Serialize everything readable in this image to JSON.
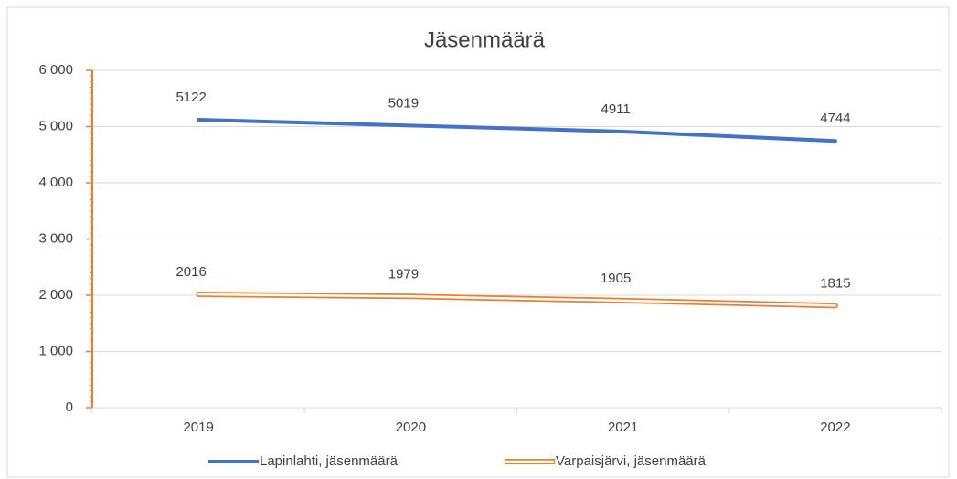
{
  "chart_data": {
    "type": "line",
    "title": "Jäsenmäärä",
    "categories": [
      "2019",
      "2020",
      "2021",
      "2022"
    ],
    "series": [
      {
        "name": "Lapinlahti, jäsenmäärä",
        "color": "#4472c4",
        "values": [
          5122,
          5019,
          4911,
          4744
        ]
      },
      {
        "name": "Varpaisjärvi, jäsenmäärä",
        "color": "#ed7d31",
        "values": [
          2016,
          1979,
          1905,
          1815
        ]
      }
    ],
    "ylim": [
      0,
      6000
    ],
    "yticks": [
      0,
      {
        "value": 1000,
        "label": "1 000"
      },
      {
        "value": 2000,
        "label": "2 000"
      },
      {
        "value": 3000,
        "label": "3 000"
      },
      {
        "value": 4000,
        "label": "4 000"
      },
      {
        "value": 5000,
        "label": "5 000"
      },
      {
        "value": 6000,
        "label": "6 000"
      }
    ],
    "grid": true,
    "legend": "bottom"
  }
}
